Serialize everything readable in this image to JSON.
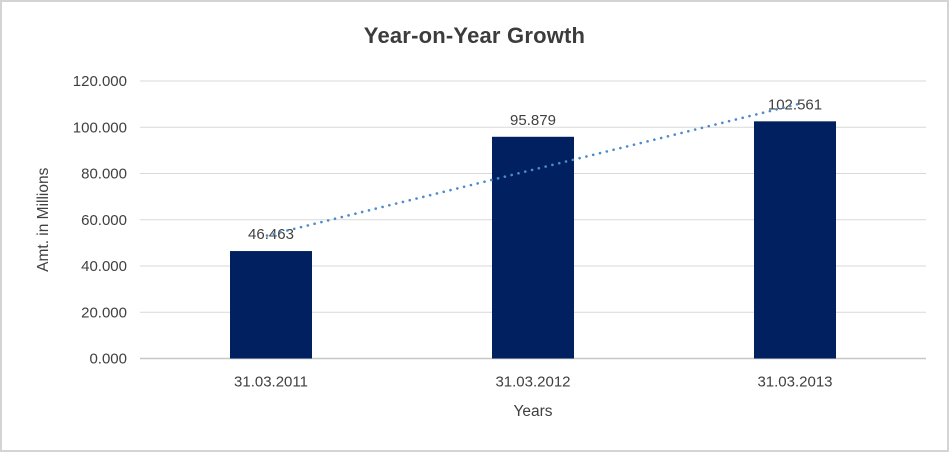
{
  "chart_data": {
    "type": "bar",
    "title": "Year-on-Year Growth",
    "xlabel": "Years",
    "ylabel": "Amt. in Millions",
    "categories": [
      "31.03.2011",
      "31.03.2012",
      "31.03.2013"
    ],
    "values": [
      46.463,
      95.879,
      102.561
    ],
    "data_labels": [
      "46.463",
      "95.879",
      "102.561"
    ],
    "yticks": [
      {
        "value": 0,
        "label": "0.000"
      },
      {
        "value": 20,
        "label": "20.000"
      },
      {
        "value": 40,
        "label": "40.000"
      },
      {
        "value": 60,
        "label": "60.000"
      },
      {
        "value": 80,
        "label": "80.000"
      },
      {
        "value": 100,
        "label": "100.000"
      },
      {
        "value": 120,
        "label": "120.000"
      }
    ],
    "ylim": [
      0,
      120
    ],
    "grid": "horizontal",
    "legend": "none",
    "trendline": {
      "type": "linear",
      "style": "dotted"
    },
    "colors": {
      "bar": "#002060",
      "trendline": "#4e8bca",
      "gridline": "#d9d9d9",
      "axis_line": "#c7c7c7",
      "text": "#404040",
      "title_text": "#3c3c3c",
      "border": "#d4d4d4",
      "background": "#ffffff"
    }
  }
}
